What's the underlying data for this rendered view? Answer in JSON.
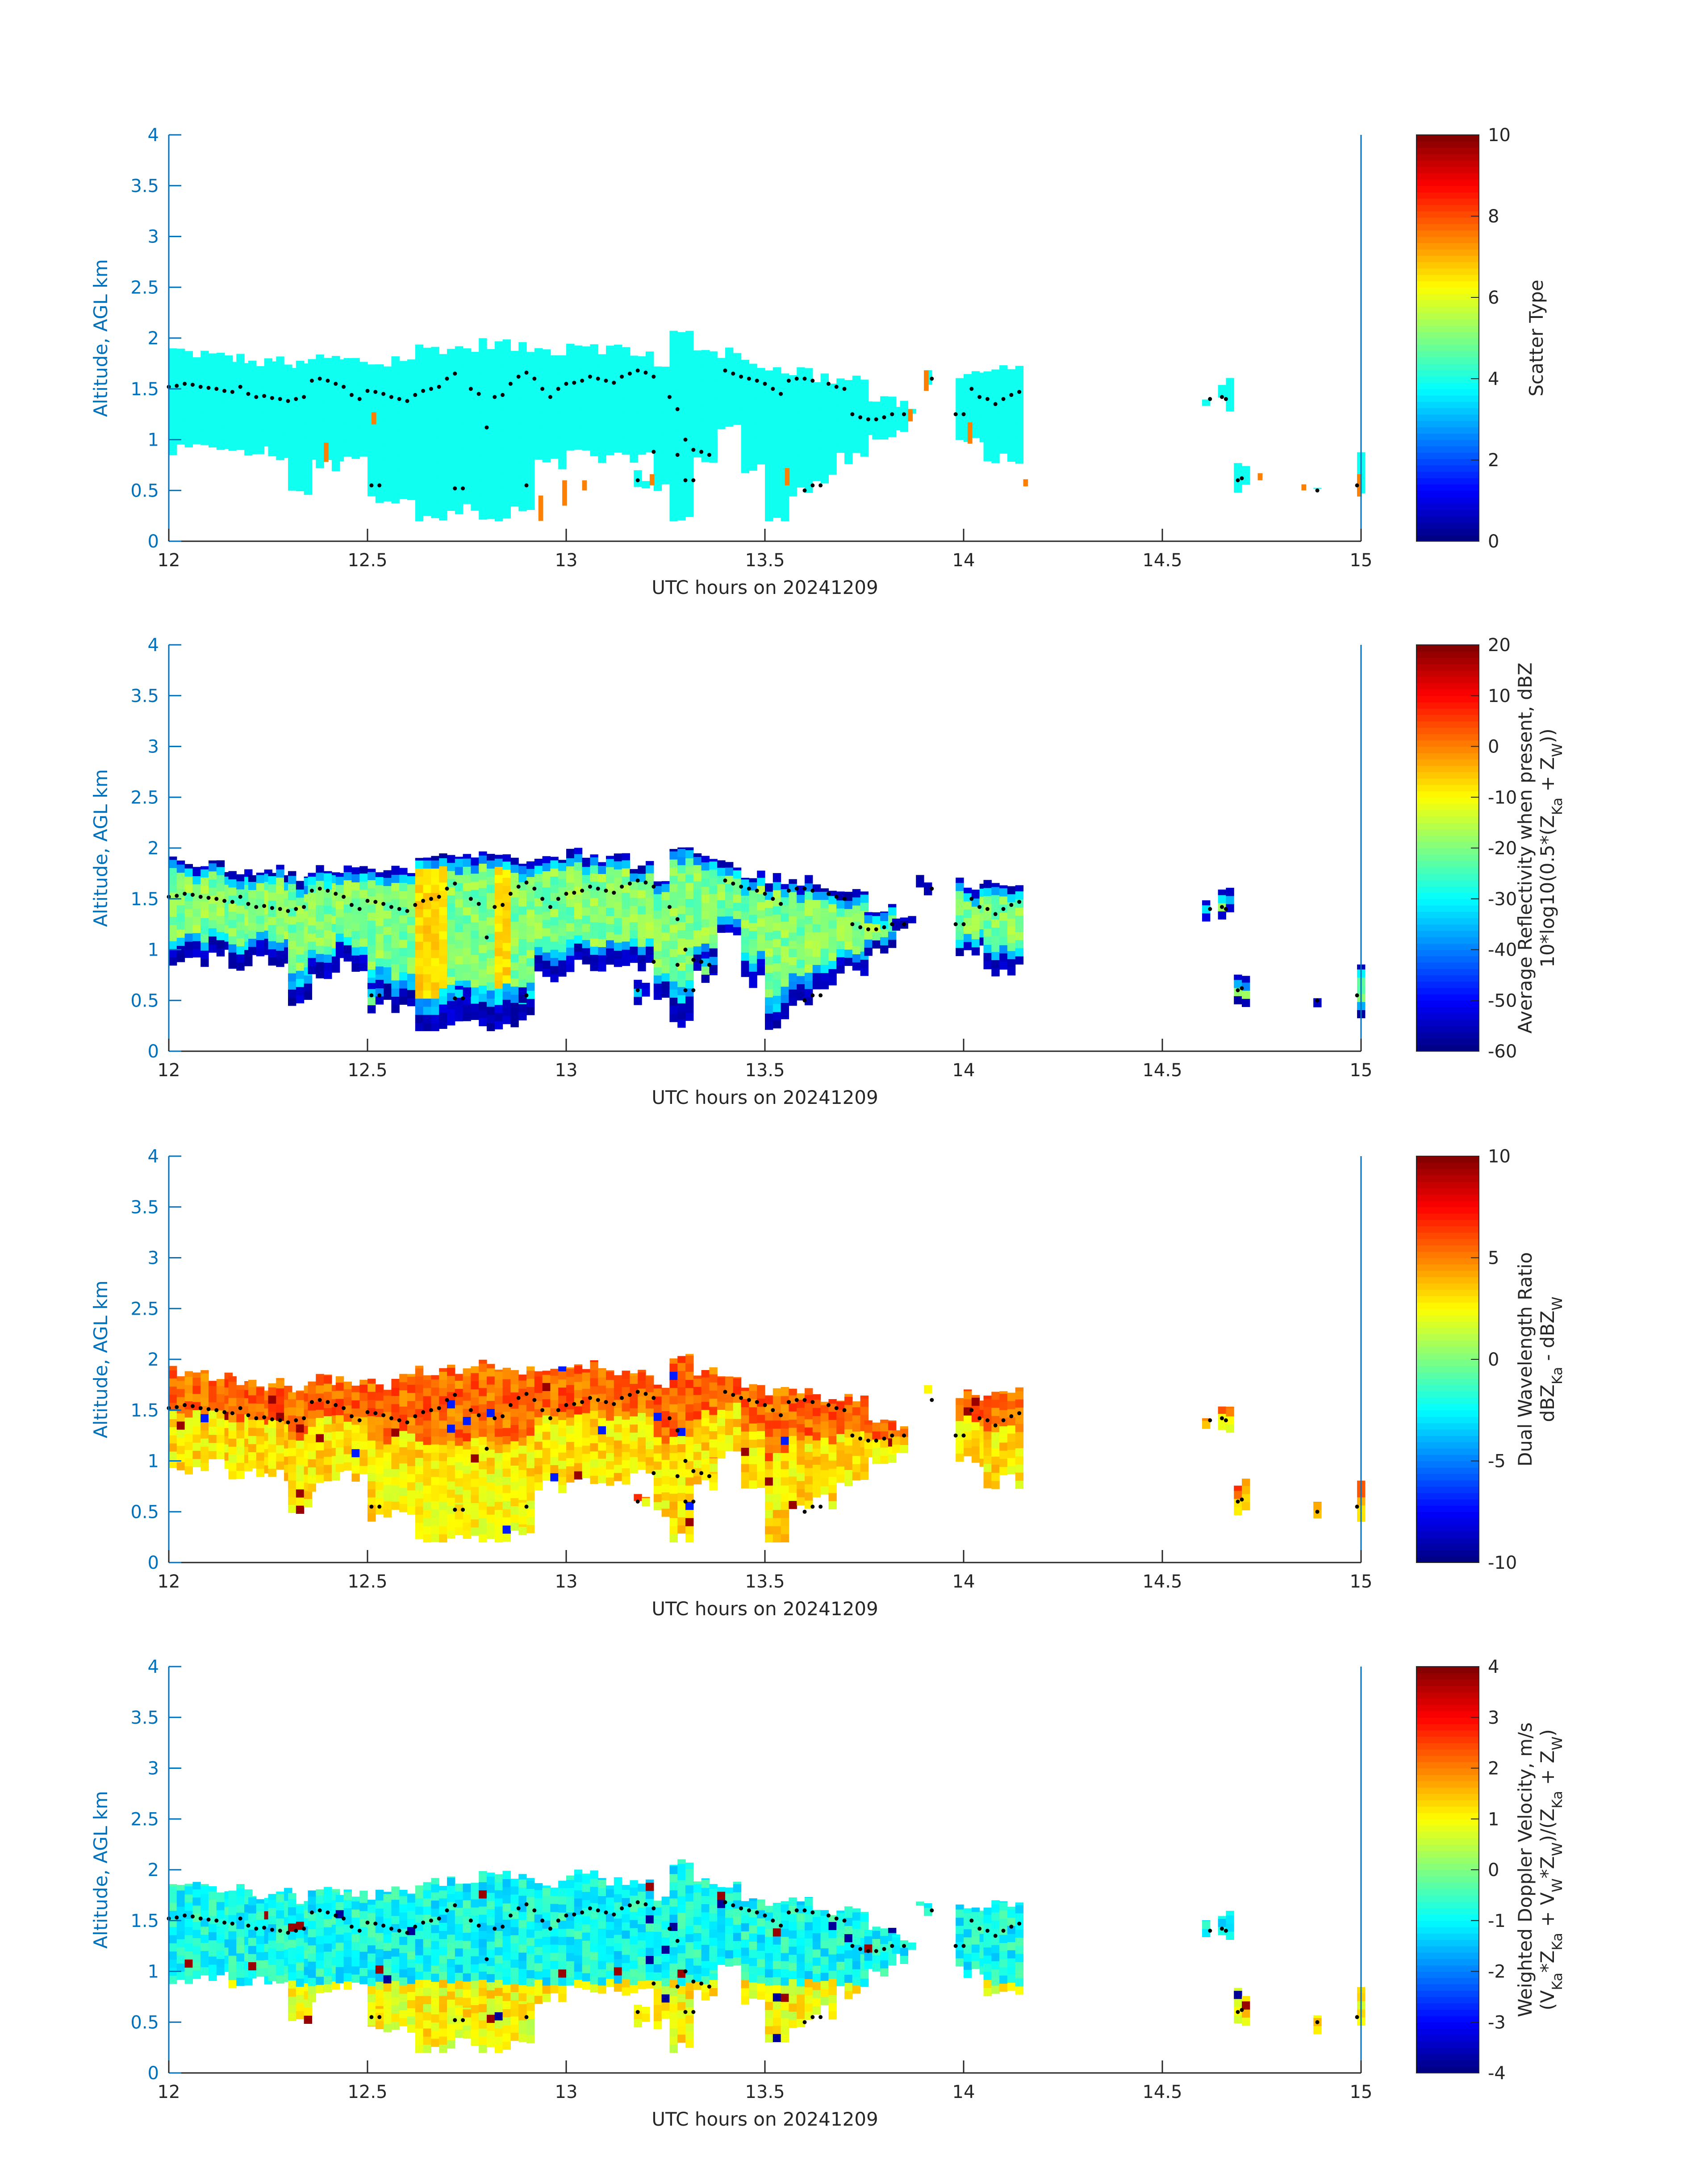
{
  "colors": {
    "axis": "#0072bd",
    "text": "#262626",
    "cbar_text": "#262626",
    "dot": "#000000",
    "background": "#ffffff"
  },
  "chart_data": [
    {
      "type": "heatmap",
      "xlabel": "UTC hours on 20241209",
      "ylabel": "Altitude, AGL km",
      "xlim": [
        12,
        15
      ],
      "ylim": [
        0,
        4
      ],
      "xticks": [
        12,
        12.5,
        13,
        13.5,
        14,
        14.5,
        15
      ],
      "yticks": [
        0,
        0.5,
        1,
        1.5,
        2,
        2.5,
        3,
        3.5,
        4
      ],
      "colorbar": {
        "label_lines": [
          "Scatter Type"
        ],
        "clim": [
          0,
          10
        ],
        "ticks": [
          0,
          2,
          4,
          6,
          8,
          10
        ],
        "colormap": "jet"
      },
      "field": "scatter_type",
      "cloud_value": 3.9,
      "red_patches": [
        {
          "x": 12.39,
          "ymin": 0.78,
          "ymax": 0.97
        },
        {
          "x": 12.51,
          "ymin": 1.15,
          "ymax": 1.27
        },
        {
          "x": 12.93,
          "ymin": 0.2,
          "ymax": 0.45
        },
        {
          "x": 12.99,
          "ymin": 0.35,
          "ymax": 0.6
        },
        {
          "x": 13.04,
          "ymin": 0.5,
          "ymax": 0.6
        },
        {
          "x": 13.21,
          "ymin": 0.55,
          "ymax": 0.66
        },
        {
          "x": 13.55,
          "ymin": 0.55,
          "ymax": 0.72
        },
        {
          "x": 13.86,
          "ymin": 1.18,
          "ymax": 1.3
        },
        {
          "x": 13.9,
          "ymin": 1.48,
          "ymax": 1.68
        },
        {
          "x": 14.01,
          "ymin": 0.96,
          "ymax": 1.17
        },
        {
          "x": 14.15,
          "ymin": 0.54,
          "ymax": 0.61
        },
        {
          "x": 14.74,
          "ymin": 0.6,
          "ymax": 0.67
        },
        {
          "x": 14.85,
          "ymin": 0.5,
          "ymax": 0.56
        },
        {
          "x": 14.99,
          "ymin": 0.44,
          "ymax": 0.66
        }
      ]
    },
    {
      "type": "heatmap",
      "xlabel": "UTC hours on 20241209",
      "ylabel": "Altitude, AGL km",
      "xlim": [
        12,
        15
      ],
      "ylim": [
        0,
        4
      ],
      "xticks": [
        12,
        12.5,
        13,
        13.5,
        14,
        14.5,
        15
      ],
      "yticks": [
        0,
        0.5,
        1,
        1.5,
        2,
        2.5,
        3,
        3.5,
        4
      ],
      "colorbar": {
        "label_lines": [
          "Average Reflectivity when present, dBZ",
          "10*log10(0.5*(Z_Ka + Z_W))"
        ],
        "clim": [
          -60,
          20
        ],
        "ticks": [
          -60,
          -50,
          -40,
          -30,
          -20,
          -10,
          0,
          10,
          20
        ],
        "colormap": "jet"
      },
      "field": "reflectivity_dBZ",
      "typical_core_dBZ": -20,
      "max_core_dBZ": -4,
      "edge_dBZ": -58
    },
    {
      "type": "heatmap",
      "xlabel": "UTC hours on 20241209",
      "ylabel": "Altitude, AGL km",
      "xlim": [
        12,
        15
      ],
      "ylim": [
        0,
        4
      ],
      "xticks": [
        12,
        12.5,
        13,
        13.5,
        14,
        14.5,
        15
      ],
      "yticks": [
        0,
        0.5,
        1,
        1.5,
        2,
        2.5,
        3,
        3.5,
        4
      ],
      "colorbar": {
        "label_lines": [
          "Dual Wavelength Ratio",
          "dBZ_Ka - dBZ_W"
        ],
        "clim": [
          -10,
          10
        ],
        "ticks": [
          -10,
          -5,
          0,
          5,
          10
        ],
        "colormap": "jet"
      },
      "field": "dwr_dB",
      "typical_dB": 3,
      "upper_layer_dB": 5.5
    },
    {
      "type": "heatmap",
      "xlabel": "UTC hours on 20241209",
      "ylabel": "Altitude, AGL km",
      "xlim": [
        12,
        15
      ],
      "ylim": [
        0,
        4
      ],
      "xticks": [
        12,
        12.5,
        13,
        13.5,
        14,
        14.5,
        15
      ],
      "yticks": [
        0,
        0.5,
        1,
        1.5,
        2,
        2.5,
        3,
        3.5,
        4
      ],
      "colorbar": {
        "label_lines": [
          "Weighted Doppler Velocity, m/s",
          "(V_Ka*Z_Ka + V_W*Z_W)/(Z_Ka + Z_W)"
        ],
        "clim": [
          -4,
          4
        ],
        "ticks": [
          -4,
          -3,
          -2,
          -1,
          0,
          1,
          2,
          3,
          4
        ],
        "colormap": "jet"
      },
      "field": "doppler_velocity_ms",
      "typical_ms": -0.9,
      "low_layer_ms": 1.0
    }
  ],
  "cloud_segments": [
    {
      "x0": 12.0,
      "x1": 12.04,
      "top": 1.88,
      "base": 0.88
    },
    {
      "x0": 12.04,
      "x1": 12.1,
      "top": 1.85,
      "base": 0.9
    },
    {
      "x0": 12.1,
      "x1": 12.15,
      "top": 1.82,
      "base": 0.95
    },
    {
      "x0": 12.15,
      "x1": 12.2,
      "top": 1.8,
      "base": 0.85
    },
    {
      "x0": 12.2,
      "x1": 12.25,
      "top": 1.75,
      "base": 0.88
    },
    {
      "x0": 12.25,
      "x1": 12.3,
      "top": 1.78,
      "base": 0.85
    },
    {
      "x0": 12.3,
      "x1": 12.35,
      "top": 1.72,
      "base": 0.5
    },
    {
      "x0": 12.35,
      "x1": 12.42,
      "top": 1.8,
      "base": 0.75
    },
    {
      "x0": 12.42,
      "x1": 12.5,
      "top": 1.78,
      "base": 0.85
    },
    {
      "x0": 12.5,
      "x1": 12.56,
      "top": 1.75,
      "base": 0.45
    },
    {
      "x0": 12.56,
      "x1": 12.62,
      "top": 1.8,
      "base": 0.45
    },
    {
      "x0": 12.62,
      "x1": 12.7,
      "top": 1.9,
      "base": 0.2
    },
    {
      "x0": 12.7,
      "x1": 12.78,
      "top": 1.9,
      "base": 0.3
    },
    {
      "x0": 12.78,
      "x1": 12.86,
      "top": 1.95,
      "base": 0.2
    },
    {
      "x0": 12.86,
      "x1": 12.92,
      "top": 1.9,
      "base": 0.3
    },
    {
      "x0": 12.92,
      "x1": 13.0,
      "top": 1.88,
      "base": 0.75
    },
    {
      "x0": 13.0,
      "x1": 13.08,
      "top": 1.95,
      "base": 0.85
    },
    {
      "x0": 13.08,
      "x1": 13.16,
      "top": 1.9,
      "base": 0.8
    },
    {
      "x0": 13.16,
      "x1": 13.22,
      "top": 1.85,
      "base": 0.85
    },
    {
      "x0": 13.22,
      "x1": 13.26,
      "top": 1.7,
      "base": 0.5
    },
    {
      "x0": 13.26,
      "x1": 13.32,
      "top": 2.05,
      "base": 0.25
    },
    {
      "x0": 13.32,
      "x1": 13.38,
      "top": 1.9,
      "base": 0.8
    },
    {
      "x0": 13.38,
      "x1": 13.44,
      "top": 1.85,
      "base": 1.1
    },
    {
      "x0": 13.44,
      "x1": 13.5,
      "top": 1.75,
      "base": 0.7
    },
    {
      "x0": 13.5,
      "x1": 13.56,
      "top": 1.7,
      "base": 0.25
    },
    {
      "x0": 13.56,
      "x1": 13.62,
      "top": 1.68,
      "base": 0.5
    },
    {
      "x0": 13.62,
      "x1": 13.68,
      "top": 1.6,
      "base": 0.6
    },
    {
      "x0": 13.68,
      "x1": 13.75,
      "top": 1.62,
      "base": 0.8
    },
    {
      "x0": 13.75,
      "x1": 13.82,
      "top": 1.4,
      "base": 1.0
    },
    {
      "x0": 13.82,
      "x1": 13.86,
      "top": 1.35,
      "base": 1.15
    },
    {
      "x0": 13.98,
      "x1": 14.05,
      "top": 1.65,
      "base": 1.0
    },
    {
      "x0": 14.05,
      "x1": 14.15,
      "top": 1.68,
      "base": 0.8
    },
    {
      "x0": 14.6,
      "x1": 14.62,
      "top": 1.45,
      "base": 1.35
    },
    {
      "x0": 14.64,
      "x1": 14.67,
      "top": 1.55,
      "base": 1.35
    },
    {
      "x0": 14.68,
      "x1": 14.72,
      "top": 0.78,
      "base": 0.5
    },
    {
      "x0": 14.88,
      "x1": 14.9,
      "top": 0.55,
      "base": 0.45
    },
    {
      "x0": 14.99,
      "x1": 15.0,
      "top": 0.85,
      "base": 0.4
    }
  ],
  "cloud_fragments": [
    {
      "x0": 12.5,
      "x1": 12.53,
      "top": 0.65,
      "base": 0.45
    },
    {
      "x0": 12.72,
      "x1": 12.76,
      "top": 0.6,
      "base": 0.5
    },
    {
      "x0": 12.88,
      "x1": 12.9,
      "top": 0.65,
      "base": 0.45
    },
    {
      "x0": 13.17,
      "x1": 13.2,
      "top": 0.65,
      "base": 0.5
    },
    {
      "x0": 13.34,
      "x1": 13.38,
      "top": 1.0,
      "base": 0.75
    },
    {
      "x0": 13.86,
      "x1": 13.88,
      "top": 1.3,
      "base": 1.2
    },
    {
      "x0": 13.9,
      "x1": 13.92,
      "top": 1.72,
      "base": 1.6
    },
    {
      "x0": 13.88,
      "x1": 13.9,
      "top": 1.68,
      "base": 1.62
    }
  ],
  "cloud_top_markers": [
    {
      "x": 12.0,
      "y": 1.52
    },
    {
      "x": 12.02,
      "y": 1.53
    },
    {
      "x": 12.04,
      "y": 1.55
    },
    {
      "x": 12.06,
      "y": 1.54
    },
    {
      "x": 12.08,
      "y": 1.52
    },
    {
      "x": 12.1,
      "y": 1.51
    },
    {
      "x": 12.12,
      "y": 1.5
    },
    {
      "x": 12.14,
      "y": 1.48
    },
    {
      "x": 12.16,
      "y": 1.47
    },
    {
      "x": 12.18,
      "y": 1.52
    },
    {
      "x": 12.2,
      "y": 1.45
    },
    {
      "x": 12.22,
      "y": 1.42
    },
    {
      "x": 12.24,
      "y": 1.43
    },
    {
      "x": 12.26,
      "y": 1.41
    },
    {
      "x": 12.28,
      "y": 1.4
    },
    {
      "x": 12.3,
      "y": 1.38
    },
    {
      "x": 12.32,
      "y": 1.4
    },
    {
      "x": 12.34,
      "y": 1.42
    },
    {
      "x": 12.36,
      "y": 1.58
    },
    {
      "x": 12.38,
      "y": 1.6
    },
    {
      "x": 12.4,
      "y": 1.58
    },
    {
      "x": 12.42,
      "y": 1.55
    },
    {
      "x": 12.44,
      "y": 1.52
    },
    {
      "x": 12.46,
      "y": 1.44
    },
    {
      "x": 12.48,
      "y": 1.4
    },
    {
      "x": 12.5,
      "y": 1.48
    },
    {
      "x": 12.52,
      "y": 1.47
    },
    {
      "x": 12.54,
      "y": 1.45
    },
    {
      "x": 12.56,
      "y": 1.42
    },
    {
      "x": 12.58,
      "y": 1.4
    },
    {
      "x": 12.6,
      "y": 1.38
    },
    {
      "x": 12.62,
      "y": 1.44
    },
    {
      "x": 12.64,
      "y": 1.48
    },
    {
      "x": 12.66,
      "y": 1.5
    },
    {
      "x": 12.68,
      "y": 1.52
    },
    {
      "x": 12.7,
      "y": 1.6
    },
    {
      "x": 12.72,
      "y": 1.65
    },
    {
      "x": 12.76,
      "y": 1.5
    },
    {
      "x": 12.78,
      "y": 1.45
    },
    {
      "x": 12.82,
      "y": 1.42
    },
    {
      "x": 12.84,
      "y": 1.44
    },
    {
      "x": 12.86,
      "y": 1.55
    },
    {
      "x": 12.88,
      "y": 1.62
    },
    {
      "x": 12.9,
      "y": 1.66
    },
    {
      "x": 12.92,
      "y": 1.6
    },
    {
      "x": 12.94,
      "y": 1.5
    },
    {
      "x": 12.96,
      "y": 1.42
    },
    {
      "x": 12.98,
      "y": 1.5
    },
    {
      "x": 13.0,
      "y": 1.55
    },
    {
      "x": 13.02,
      "y": 1.56
    },
    {
      "x": 13.04,
      "y": 1.58
    },
    {
      "x": 13.06,
      "y": 1.62
    },
    {
      "x": 13.08,
      "y": 1.6
    },
    {
      "x": 13.1,
      "y": 1.58
    },
    {
      "x": 13.12,
      "y": 1.56
    },
    {
      "x": 13.14,
      "y": 1.62
    },
    {
      "x": 13.16,
      "y": 1.65
    },
    {
      "x": 13.18,
      "y": 1.68
    },
    {
      "x": 13.2,
      "y": 1.66
    },
    {
      "x": 13.22,
      "y": 1.62
    },
    {
      "x": 13.26,
      "y": 1.42
    },
    {
      "x": 13.28,
      "y": 1.3
    },
    {
      "x": 13.3,
      "y": 1.0
    },
    {
      "x": 13.32,
      "y": 0.9
    },
    {
      "x": 13.34,
      "y": 0.88
    },
    {
      "x": 13.36,
      "y": 0.85
    },
    {
      "x": 13.4,
      "y": 1.68
    },
    {
      "x": 13.42,
      "y": 1.65
    },
    {
      "x": 13.44,
      "y": 1.62
    },
    {
      "x": 13.46,
      "y": 1.6
    },
    {
      "x": 13.48,
      "y": 1.58
    },
    {
      "x": 13.5,
      "y": 1.55
    },
    {
      "x": 13.52,
      "y": 1.5
    },
    {
      "x": 13.54,
      "y": 1.45
    },
    {
      "x": 13.56,
      "y": 1.58
    },
    {
      "x": 13.58,
      "y": 1.6
    },
    {
      "x": 13.6,
      "y": 1.6
    },
    {
      "x": 13.62,
      "y": 1.58
    },
    {
      "x": 13.66,
      "y": 1.55
    },
    {
      "x": 13.68,
      "y": 1.52
    },
    {
      "x": 13.7,
      "y": 1.5
    },
    {
      "x": 13.72,
      "y": 1.25
    },
    {
      "x": 13.74,
      "y": 1.22
    },
    {
      "x": 13.76,
      "y": 1.2
    },
    {
      "x": 13.78,
      "y": 1.2
    },
    {
      "x": 13.8,
      "y": 1.22
    },
    {
      "x": 13.82,
      "y": 1.25
    },
    {
      "x": 13.85,
      "y": 1.25
    },
    {
      "x": 13.92,
      "y": 1.6
    },
    {
      "x": 13.98,
      "y": 1.25
    },
    {
      "x": 14.0,
      "y": 1.25
    },
    {
      "x": 14.02,
      "y": 1.5
    },
    {
      "x": 14.04,
      "y": 1.42
    },
    {
      "x": 14.06,
      "y": 1.4
    },
    {
      "x": 14.08,
      "y": 1.35
    },
    {
      "x": 14.1,
      "y": 1.4
    },
    {
      "x": 14.12,
      "y": 1.44
    },
    {
      "x": 14.14,
      "y": 1.47
    },
    {
      "x": 14.62,
      "y": 1.4
    },
    {
      "x": 14.65,
      "y": 1.42
    },
    {
      "x": 14.66,
      "y": 1.4
    },
    {
      "x": 14.69,
      "y": 0.6
    },
    {
      "x": 14.7,
      "y": 0.62
    },
    {
      "x": 14.89,
      "y": 0.5
    },
    {
      "x": 14.99,
      "y": 0.55
    },
    {
      "x": 12.51,
      "y": 0.55
    },
    {
      "x": 12.53,
      "y": 0.55
    },
    {
      "x": 12.72,
      "y": 0.52
    },
    {
      "x": 12.74,
      "y": 0.52
    },
    {
      "x": 12.8,
      "y": 1.12
    },
    {
      "x": 12.9,
      "y": 0.55
    },
    {
      "x": 13.18,
      "y": 0.6
    },
    {
      "x": 13.3,
      "y": 0.6
    },
    {
      "x": 13.32,
      "y": 0.6
    },
    {
      "x": 13.6,
      "y": 0.5
    },
    {
      "x": 13.62,
      "y": 0.55
    },
    {
      "x": 13.64,
      "y": 0.55
    },
    {
      "x": 13.28,
      "y": 0.85
    },
    {
      "x": 13.22,
      "y": 0.88
    }
  ]
}
